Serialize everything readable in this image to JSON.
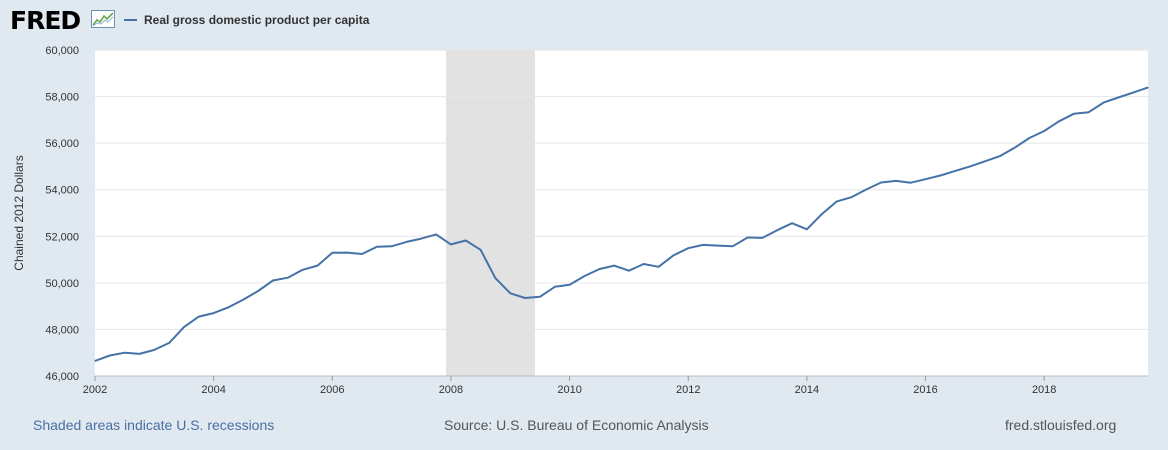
{
  "logo": {
    "text": "FRED",
    "icon": "line-chart-icon"
  },
  "colors": {
    "series": "#4572a7",
    "recession": "#e2e2e2",
    "background": "#e1e9f0",
    "plot": "#ffffff",
    "grid": "#e6e6e6"
  },
  "footer": {
    "recessions_note": "Shaded areas indicate U.S. recessions",
    "source": "Source: U.S. Bureau of Economic Analysis",
    "site": "fred.stlouisfed.org"
  },
  "chart_data": {
    "type": "line",
    "title": "",
    "xlabel": "",
    "ylabel": "Chained 2012 Dollars",
    "xlim": [
      "2002-01-01",
      "2019-10-01"
    ],
    "ylim": [
      46000,
      60000
    ],
    "x_ticks": [
      "2002",
      "2004",
      "2006",
      "2008",
      "2010",
      "2012",
      "2014",
      "2016",
      "2018"
    ],
    "y_ticks": [
      "46,000",
      "48,000",
      "50,000",
      "52,000",
      "54,000",
      "56,000",
      "58,000",
      "60,000"
    ],
    "grid": true,
    "legend": "top-left",
    "recessions": [
      {
        "start": "2007-12-01",
        "end": "2009-06-01"
      }
    ],
    "series": [
      {
        "name": "Real gross domestic product per capita",
        "x": [
          "2002-01-01",
          "2002-04-01",
          "2002-07-01",
          "2002-10-01",
          "2003-01-01",
          "2003-04-01",
          "2003-07-01",
          "2003-10-01",
          "2004-01-01",
          "2004-04-01",
          "2004-07-01",
          "2004-10-01",
          "2005-01-01",
          "2005-04-01",
          "2005-07-01",
          "2005-10-01",
          "2006-01-01",
          "2006-04-01",
          "2006-07-01",
          "2006-10-01",
          "2007-01-01",
          "2007-04-01",
          "2007-07-01",
          "2007-10-01",
          "2008-01-01",
          "2008-04-01",
          "2008-07-01",
          "2008-10-01",
          "2009-01-01",
          "2009-04-01",
          "2009-07-01",
          "2009-10-01",
          "2010-01-01",
          "2010-04-01",
          "2010-07-01",
          "2010-10-01",
          "2011-01-01",
          "2011-04-01",
          "2011-07-01",
          "2011-10-01",
          "2012-01-01",
          "2012-04-01",
          "2012-07-01",
          "2012-10-01",
          "2013-01-01",
          "2013-04-01",
          "2013-07-01",
          "2013-10-01",
          "2014-01-01",
          "2014-04-01",
          "2014-07-01",
          "2014-10-01",
          "2015-01-01",
          "2015-04-01",
          "2015-07-01",
          "2015-10-01",
          "2016-01-01",
          "2016-04-01",
          "2016-07-01",
          "2016-10-01",
          "2017-01-01",
          "2017-04-01",
          "2017-07-01",
          "2017-10-01",
          "2018-01-01",
          "2018-04-01",
          "2018-07-01",
          "2018-10-01",
          "2019-01-01",
          "2019-04-01",
          "2019-07-01",
          "2019-10-01"
        ],
        "values": [
          46650,
          46880,
          47000,
          46950,
          47120,
          47420,
          48100,
          48550,
          48700,
          48950,
          49280,
          49650,
          50100,
          50220,
          50560,
          50740,
          51290,
          51300,
          51240,
          51550,
          51570,
          51760,
          51900,
          52080,
          51650,
          51820,
          51420,
          50200,
          49550,
          49350,
          49400,
          49830,
          49920,
          50290,
          50590,
          50740,
          50520,
          50810,
          50690,
          51180,
          51490,
          51630,
          51600,
          51570,
          51950,
          51930,
          52260,
          52560,
          52300,
          52950,
          53490,
          53680,
          54010,
          54310,
          54380,
          54300,
          54450,
          54610,
          54810,
          55000,
          55220,
          55440,
          55800,
          56220,
          56520,
          56940,
          57260,
          57330,
          57740,
          57960,
          58170,
          58390
        ]
      }
    ]
  }
}
